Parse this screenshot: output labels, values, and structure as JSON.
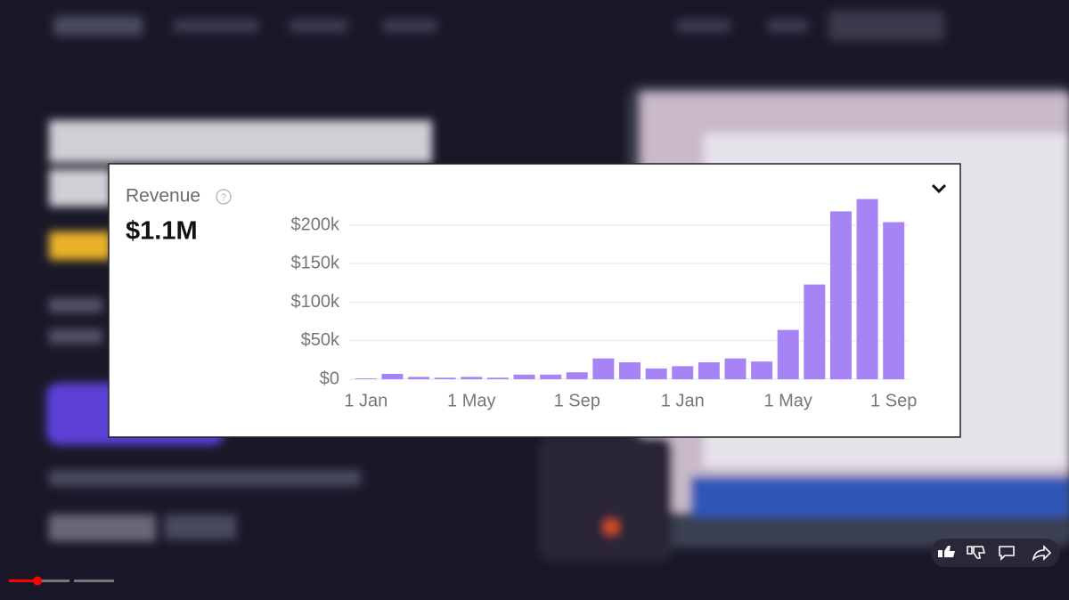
{
  "chart_data": {
    "type": "bar",
    "title": "Revenue",
    "subtitle": "$1.1M",
    "categories": [
      "1 Jan",
      null,
      null,
      null,
      "1 May",
      null,
      null,
      null,
      "1 Sep",
      null,
      null,
      null,
      "1 Jan",
      null,
      null,
      null,
      "1 May",
      null,
      null,
      null,
      "1 Sep"
    ],
    "values": [
      1000,
      7000,
      3000,
      2000,
      3000,
      2000,
      6000,
      6000,
      9000,
      27000,
      22000,
      14000,
      17000,
      22000,
      27000,
      23000,
      64000,
      123000,
      218000,
      234000,
      204000
    ],
    "color": "#a784f5",
    "ylim": [
      0,
      240000
    ],
    "yticks": [
      {
        "value": 0,
        "label": "$0"
      },
      {
        "value": 50000,
        "label": "$50k"
      },
      {
        "value": 100000,
        "label": "$100k"
      },
      {
        "value": 150000,
        "label": "$150k"
      },
      {
        "value": 200000,
        "label": "$200k"
      }
    ],
    "grid": true
  }
}
